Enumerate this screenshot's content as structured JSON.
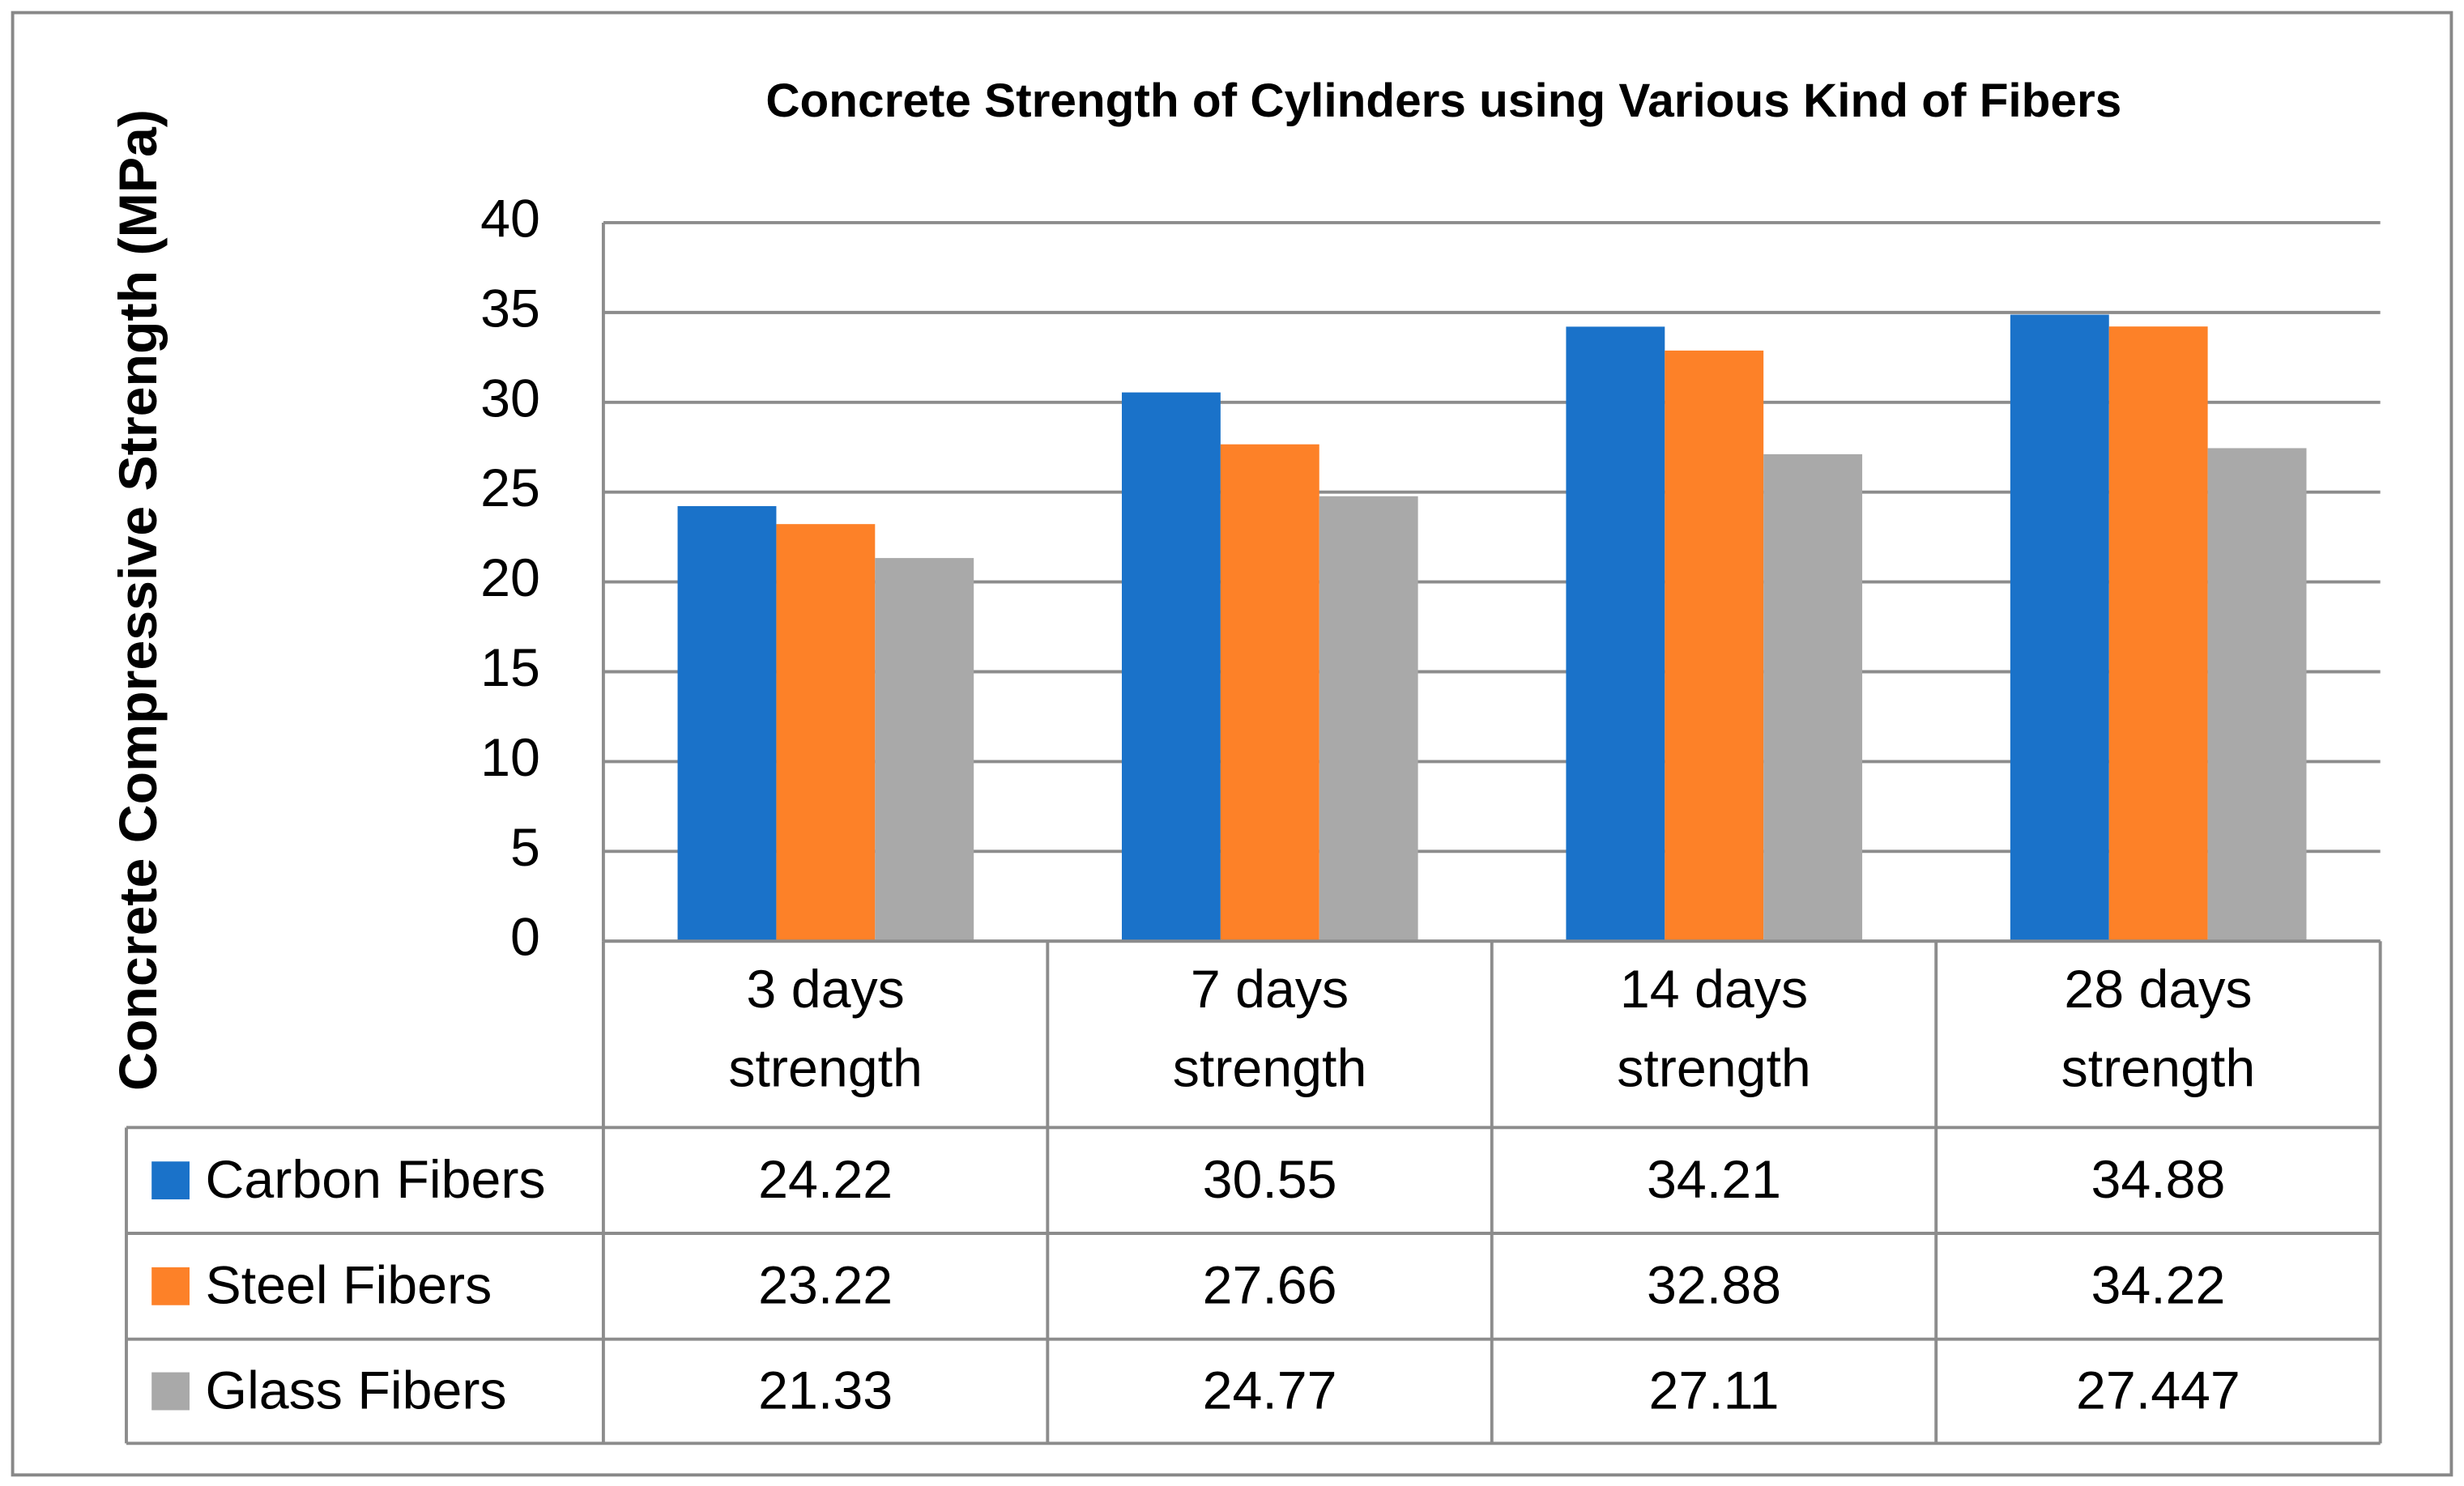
{
  "chart_data": {
    "type": "bar",
    "title": "Concrete Strength of Cylinders using Various Kind of Fibers",
    "y_label": "Concrete Compressive  Strength (MPa)",
    "categories": [
      "3 days strength",
      "7 days strength",
      "14 days strength",
      "28 days strength"
    ],
    "series": [
      {
        "name": "Carbon Fibers",
        "color": "#1a72c9",
        "values": [
          24.22,
          30.55,
          34.21,
          34.88
        ]
      },
      {
        "name": "Steel Fibers",
        "color": "#fd8128",
        "values": [
          23.22,
          27.66,
          32.88,
          34.22
        ]
      },
      {
        "name": "Glass Fibers",
        "color": "#a9a9a9",
        "values": [
          21.33,
          24.77,
          27.11,
          27.447
        ]
      }
    ],
    "ylim": [
      0,
      40
    ],
    "yticks": [
      0,
      5,
      10,
      15,
      20,
      25,
      30,
      35,
      40
    ],
    "grid": true
  }
}
